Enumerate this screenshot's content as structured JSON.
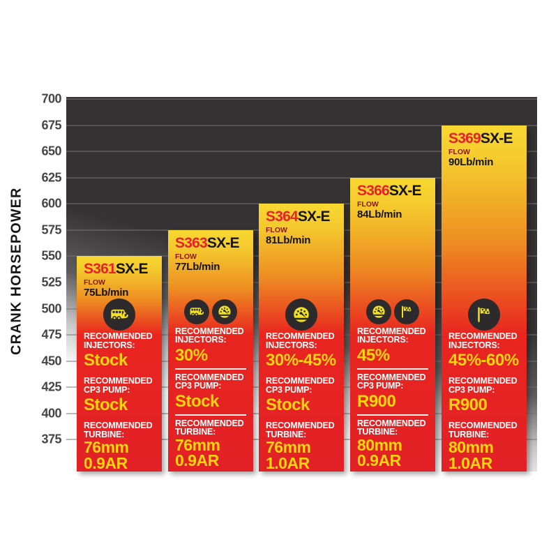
{
  "colors": {
    "bar_yellow": "#f8d831",
    "bar_orange": "#ee8f22",
    "bar_red": "#e8251f",
    "bar_red_deep": "#e22127",
    "value_yellow": "#ffd60a",
    "model_red": "#e8222a",
    "model_black": "#141414",
    "flow_label_red": "#8c150e",
    "plot_dark": "#353233",
    "icon_circle": "#2d2a2b",
    "icon_glyph": "#f2e120"
  },
  "labels": {
    "flow": "FLOW",
    "injectors": "RECOMMENDED INJECTORS:",
    "cp3": "RECOMMENDED CP3 PUMP:",
    "turbine": "RECOMMENDED TURBINE:"
  },
  "chart_data": {
    "type": "bar",
    "title": "",
    "xlabel": "",
    "ylabel": "CRANK HORSEPOWER",
    "ylim": [
      375,
      700
    ],
    "y_tick_step": 25,
    "grid": true,
    "y_ticks": [
      700,
      675,
      650,
      625,
      600,
      575,
      550,
      525,
      500,
      475,
      450,
      425,
      400,
      375
    ],
    "categories": [
      "S361SX-E",
      "S363SX-E",
      "S364SX-E",
      "S366SX-E",
      "S369SX-E"
    ],
    "values": [
      550,
      575,
      600,
      625,
      675
    ],
    "bars": [
      {
        "model_prefix": "S361",
        "model_suffix": "SX-E",
        "flow": "75Lb/min",
        "crank_horsepower": 550,
        "icons": [
          "rv"
        ],
        "injectors": "Stock",
        "cp3_pump": "Stock",
        "turbine": [
          "76mm",
          "0.9AR"
        ]
      },
      {
        "model_prefix": "S363",
        "model_suffix": "SX-E",
        "flow": "77Lb/min",
        "crank_horsepower": 575,
        "icons": [
          "rv",
          "gauge"
        ],
        "injectors": "30%",
        "cp3_pump": "Stock",
        "turbine": [
          "76mm",
          "0.9AR"
        ]
      },
      {
        "model_prefix": "S364",
        "model_suffix": "SX-E",
        "flow": "81Lb/min",
        "crank_horsepower": 600,
        "icons": [
          "gauge"
        ],
        "injectors": "30%-45%",
        "cp3_pump": "Stock",
        "turbine": [
          "76mm",
          "1.0AR"
        ]
      },
      {
        "model_prefix": "S366",
        "model_suffix": "SX-E",
        "flow": "84Lb/min",
        "crank_horsepower": 625,
        "icons": [
          "gauge",
          "flag"
        ],
        "injectors": "45%",
        "cp3_pump": "R900",
        "turbine": [
          "80mm",
          "0.9AR"
        ]
      },
      {
        "model_prefix": "S369",
        "model_suffix": "SX-E",
        "flow": "90Lb/min",
        "crank_horsepower": 675,
        "icons": [
          "flag"
        ],
        "injectors": "45%-60%",
        "cp3_pump": "R900",
        "turbine": [
          "80mm",
          "1.0AR"
        ]
      }
    ]
  }
}
